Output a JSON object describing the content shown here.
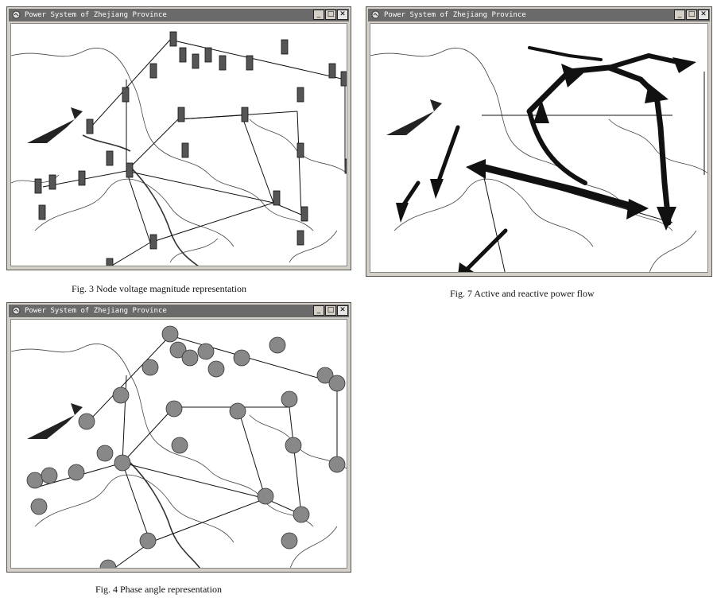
{
  "window": {
    "title": "Power System of Zhejiang Province",
    "buttons": {
      "minimize": "_",
      "maximize": "□",
      "close": "✕"
    }
  },
  "figures": [
    {
      "id": "fig3",
      "caption": "Fig. 3 Node voltage magnitude representation"
    },
    {
      "id": "fig7",
      "caption": "Fig. 7 Active and reactive power flow"
    },
    {
      "id": "fig4",
      "caption": "Fig. 4 Phase angle representation"
    }
  ],
  "icons": {
    "app": "window-app-icon"
  },
  "colors": {
    "titlebar": "#6a6a6a",
    "chrome": "#d4d0c8",
    "ink": "#222222",
    "node_fill": "#888888"
  }
}
